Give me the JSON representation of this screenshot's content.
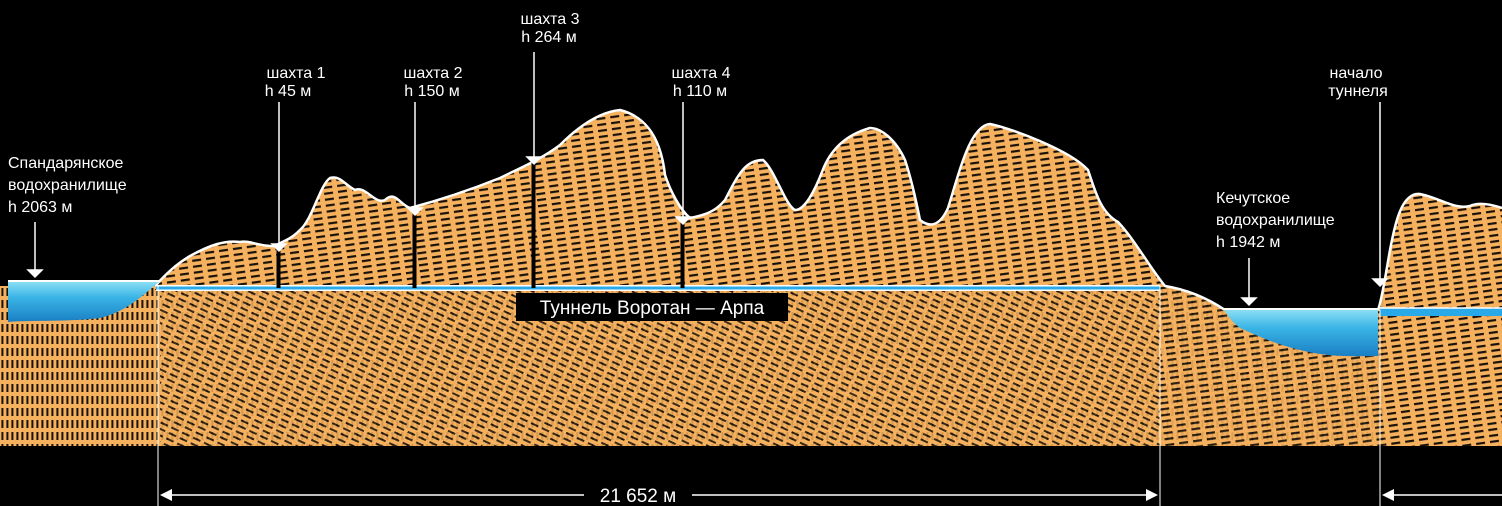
{
  "tunnel": {
    "name": "Туннель Воротан — Арпа",
    "length_label": "21 652 м"
  },
  "reservoirs": {
    "spandaryan": {
      "line1": "Спандарянское",
      "line2": "водохранилище",
      "line3": "h 2063 м"
    },
    "ketuts": {
      "line1": "Кечутское",
      "line2": "водохранилище",
      "line3": "h 1942 м"
    }
  },
  "shafts": [
    {
      "line1": "шахта 1",
      "line2": "h 45 м"
    },
    {
      "line1": "шахта 2",
      "line2": "h 150 м"
    },
    {
      "line1": "шахта 3",
      "line2": "h 264 м"
    },
    {
      "line1": "шахта 4",
      "line2": "h 110 м"
    }
  ],
  "tunnel_start": {
    "line1": "начало",
    "line2": "туннеля"
  },
  "colors": {
    "terrain": "#F6B15E",
    "terrain_stripe": "#1A1208",
    "water_top": "#7FD9F2",
    "water_bottom": "#1E8FD0",
    "tunnel_line": "#29A9E8",
    "background": "#000000"
  }
}
